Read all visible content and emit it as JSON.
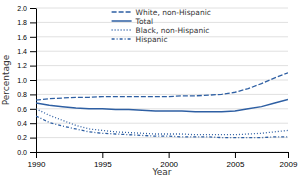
{
  "chart_data": {
    "type": "line",
    "xlabel": "Year",
    "ylabel": "Percentage",
    "x": [
      1990,
      1991,
      1992,
      1993,
      1994,
      1995,
      1996,
      1997,
      1998,
      1999,
      2000,
      2001,
      2002,
      2003,
      2004,
      2005,
      2006,
      2007,
      2008,
      2009
    ],
    "series": [
      {
        "name": "White, non-Hispanic",
        "color": "#2E5FA3",
        "line_style": "dashed",
        "values": [
          0.72,
          0.74,
          0.75,
          0.76,
          0.76,
          0.77,
          0.77,
          0.77,
          0.77,
          0.77,
          0.77,
          0.78,
          0.78,
          0.79,
          0.8,
          0.83,
          0.88,
          0.95,
          1.03,
          1.1
        ]
      },
      {
        "name": "Total",
        "color": "#2E5FA3",
        "line_style": "solid",
        "values": [
          0.68,
          0.65,
          0.63,
          0.61,
          0.6,
          0.6,
          0.59,
          0.59,
          0.58,
          0.57,
          0.57,
          0.57,
          0.56,
          0.56,
          0.56,
          0.57,
          0.6,
          0.63,
          0.68,
          0.73
        ]
      },
      {
        "name": "Black, non-Hispanic",
        "color": "#2E5FA3",
        "line_style": "dotted",
        "values": [
          0.6,
          0.51,
          0.44,
          0.37,
          0.32,
          0.3,
          0.28,
          0.27,
          0.26,
          0.25,
          0.25,
          0.25,
          0.24,
          0.24,
          0.24,
          0.24,
          0.25,
          0.26,
          0.28,
          0.3
        ]
      },
      {
        "name": "Hispanic",
        "color": "#2E5FA3",
        "line_style": "dashdot",
        "values": [
          0.5,
          0.41,
          0.36,
          0.32,
          0.28,
          0.26,
          0.25,
          0.24,
          0.23,
          0.22,
          0.22,
          0.21,
          0.21,
          0.21,
          0.2,
          0.2,
          0.2,
          0.2,
          0.21,
          0.21
        ]
      }
    ],
    "xlim": [
      1990,
      2009
    ],
    "xticks": [
      1990,
      1995,
      2000,
      2005,
      2009
    ],
    "ylim": [
      0.0,
      2.0
    ],
    "yticks": [
      {
        "value": 0.0,
        "label": "0.0"
      },
      0.2,
      0.4,
      0.6,
      0.8,
      {
        "value": 1.0,
        "label": "1.0"
      },
      1.2,
      1.4,
      1.6,
      1.8,
      {
        "value": 2.0,
        "label": "2.0"
      }
    ],
    "grid": true,
    "legend": "upper left"
  }
}
